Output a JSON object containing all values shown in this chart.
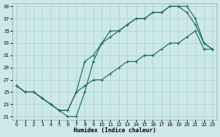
{
  "xlabel": "Humidex (Indice chaleur)",
  "bg_color": "#cce8e8",
  "grid_color": "#aacccc",
  "line_color": "#1a6b5a",
  "xlim": [
    0,
    23
  ],
  "ylim": [
    21,
    39
  ],
  "xticks": [
    0,
    1,
    2,
    3,
    4,
    5,
    6,
    7,
    8,
    9,
    10,
    11,
    12,
    13,
    14,
    15,
    16,
    17,
    18,
    19,
    20,
    21,
    22,
    23
  ],
  "yticks": [
    21,
    23,
    25,
    27,
    29,
    31,
    33,
    35,
    37,
    39
  ],
  "line1_x": [
    0,
    1,
    2,
    3,
    4,
    5,
    6,
    7,
    8,
    9,
    10,
    11,
    12,
    13,
    14,
    15,
    16,
    17,
    18,
    19,
    20,
    21,
    22,
    23
  ],
  "line1_y": [
    26,
    25,
    25,
    24,
    23,
    22,
    21,
    21,
    25,
    30,
    33,
    35,
    35,
    36,
    37,
    37,
    38,
    38,
    39,
    39,
    39,
    37,
    33,
    32
  ],
  "line2_x": [
    0,
    1,
    2,
    3,
    4,
    5,
    6,
    7,
    8,
    9,
    10,
    11,
    12,
    13,
    14,
    15,
    16,
    17,
    18,
    19,
    20,
    21,
    22,
    23
  ],
  "line2_y": [
    26,
    25,
    25,
    24,
    23,
    22,
    22,
    25,
    30,
    31,
    33,
    34,
    35,
    36,
    37,
    37,
    38,
    38,
    39,
    39,
    38,
    36,
    33,
    32
  ],
  "line3_x": [
    0,
    1,
    2,
    3,
    4,
    5,
    6,
    7,
    8,
    9,
    10,
    11,
    12,
    13,
    14,
    15,
    16,
    17,
    18,
    19,
    20,
    21,
    22,
    23
  ],
  "line3_y": [
    26,
    25,
    25,
    24,
    23,
    22,
    22,
    25,
    26,
    27,
    27,
    28,
    29,
    30,
    30,
    31,
    31,
    32,
    33,
    33,
    34,
    35,
    32,
    32
  ]
}
